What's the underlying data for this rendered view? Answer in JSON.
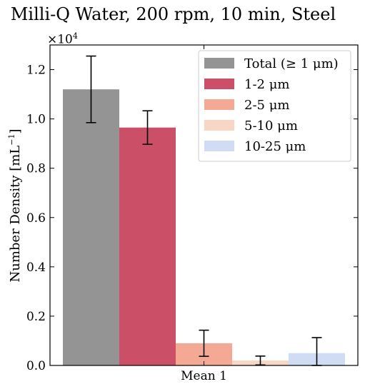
{
  "title": "Milli-Q Water, 200 rpm, 10 min, Steel",
  "y_multiplier_base": "×10",
  "y_multiplier_exp": "4",
  "ylabel_main": "Number Density [mL",
  "ylabel_exp": "−1",
  "ylabel_close": "]",
  "chart_data": {
    "type": "bar",
    "title": "Milli-Q Water, 200 rpm, 10 min, Steel",
    "xlabel": "",
    "ylabel": "Number Density [mL⁻¹]",
    "categories": [
      "Mean 1"
    ],
    "ylim": [
      0,
      1.3
    ],
    "y_scale_factor": 10000,
    "yticks": [
      "0.0",
      "0.2",
      "0.4",
      "0.6",
      "0.8",
      "1.0",
      "1.2"
    ],
    "grid": false,
    "legend_position": "top-right",
    "series": [
      {
        "name": "Total (≥ 1 μm)",
        "values": [
          1.12
        ],
        "error": [
          0.135
        ],
        "color": "#949494"
      },
      {
        "name": "1-2 μm",
        "values": [
          0.965
        ],
        "error": [
          0.068
        ],
        "color": "#cb4f67"
      },
      {
        "name": "2-5 μm",
        "values": [
          0.09
        ],
        "error": [
          0.053
        ],
        "color": "#f4a994"
      },
      {
        "name": "5-10 μm",
        "values": [
          0.02
        ],
        "error": [
          0.018
        ],
        "color": "#f7d6c6"
      },
      {
        "name": "10-25 μm",
        "values": [
          0.05
        ],
        "error": [
          0.063
        ],
        "color": "#cfdcf4"
      }
    ]
  }
}
